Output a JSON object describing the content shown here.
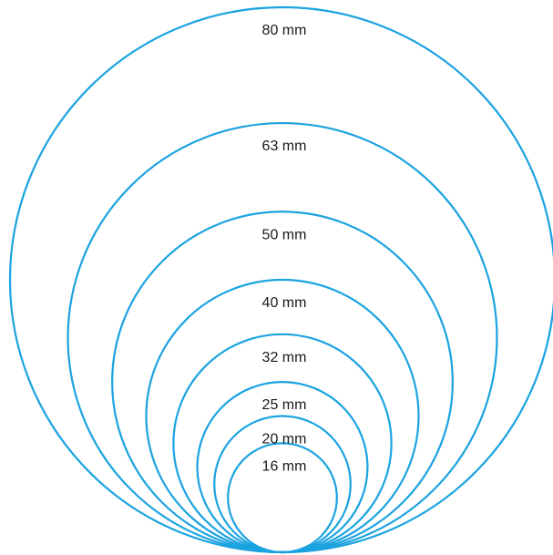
{
  "colors": {
    "ring_stroke": "#1ba3e0",
    "label_text": "#1a1a1a",
    "background": "#ffffff"
  },
  "rings": [
    {
      "diameter_mm": 80,
      "label": "80 mm"
    },
    {
      "diameter_mm": 63,
      "label": "63 mm"
    },
    {
      "diameter_mm": 50,
      "label": "50 mm"
    },
    {
      "diameter_mm": 40,
      "label": "40 mm"
    },
    {
      "diameter_mm": 32,
      "label": "32 mm"
    },
    {
      "diameter_mm": 25,
      "label": "25 mm"
    },
    {
      "diameter_mm": 20,
      "label": "20 mm"
    },
    {
      "diameter_mm": 16,
      "label": "16 mm"
    }
  ]
}
